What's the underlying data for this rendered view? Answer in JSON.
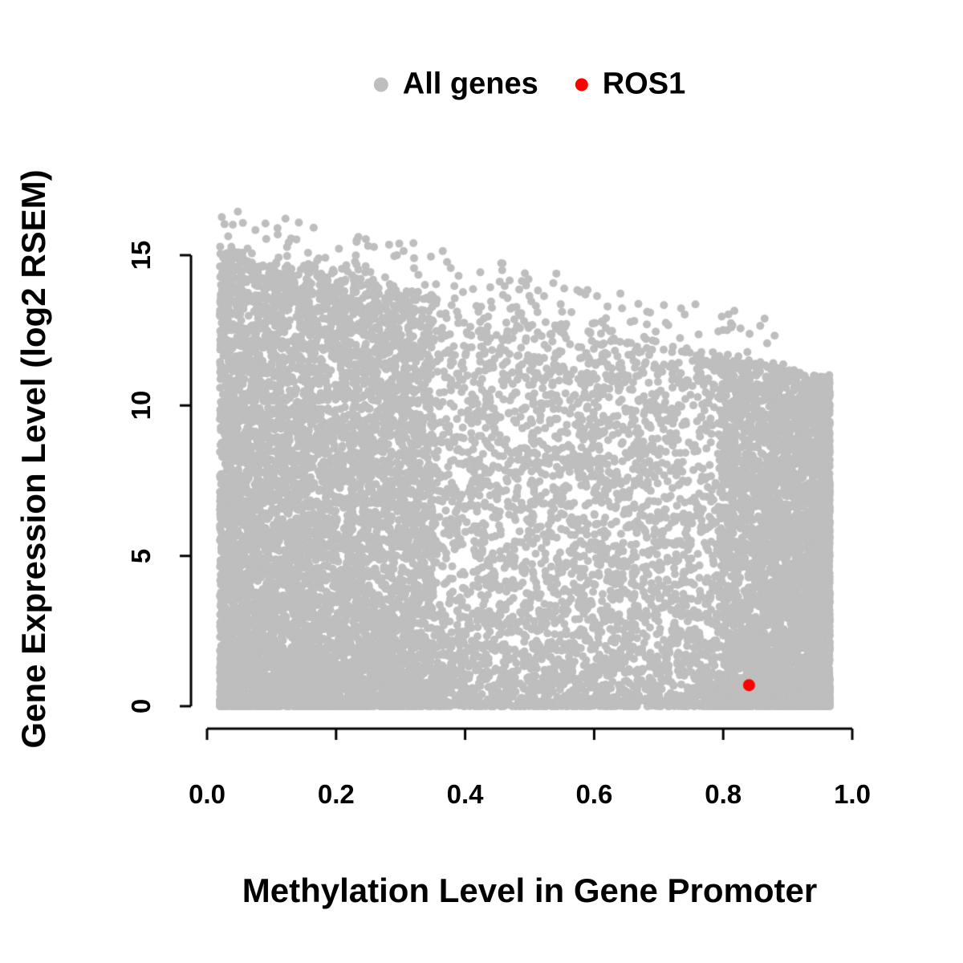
{
  "chart_data": {
    "type": "scatter",
    "title": "",
    "xlabel": "Methylation Level in Gene Promoter",
    "ylabel": "Gene Expression Level (log2 RSEM)",
    "xlim": [
      0.0,
      1.0
    ],
    "ylim": [
      0,
      16.5
    ],
    "grid": false,
    "x_ticks": [
      "0.0",
      "0.2",
      "0.4",
      "0.6",
      "0.8",
      "1.0"
    ],
    "x_tick_values": [
      0,
      0.2,
      0.4,
      0.6,
      0.8,
      1.0
    ],
    "y_ticks": [
      "0",
      "5",
      "10",
      "15"
    ],
    "y_tick_values": [
      0,
      5,
      10,
      15
    ],
    "legend": {
      "position": "top-center",
      "entries": [
        {
          "label": "All genes",
          "color": "#BEBEBE"
        },
        {
          "label": "ROS1",
          "color": "#FF0000"
        }
      ]
    },
    "series": [
      {
        "name": "All genes",
        "color": "#BEBEBE",
        "type": "dense-cloud",
        "point_radius": 5,
        "generator": {
          "seed": 20240613,
          "n": 15000,
          "x_min": 0.02,
          "x_max": 0.965,
          "envelope_intercept": 15.25,
          "envelope_slope": -4.5,
          "mix_uniform_x": 0.46,
          "mix_left_x": 0.32,
          "left_width": 0.35,
          "left_power": 1.35,
          "right_width": 0.18,
          "right_power": 1.7,
          "low_frac": 0.5,
          "low_power": 2.6,
          "jitter": 0.15,
          "outlier_n": 150,
          "outlier_spread": 1.6,
          "y_cap": 16.45
        }
      },
      {
        "name": "ROS1",
        "color": "#FF0000",
        "point_radius": 7.5,
        "points": [
          [
            0.84,
            0.7
          ]
        ]
      }
    ]
  },
  "colors": {
    "background": "#FFFFFF",
    "axis": "#000000",
    "text": "#000000"
  }
}
